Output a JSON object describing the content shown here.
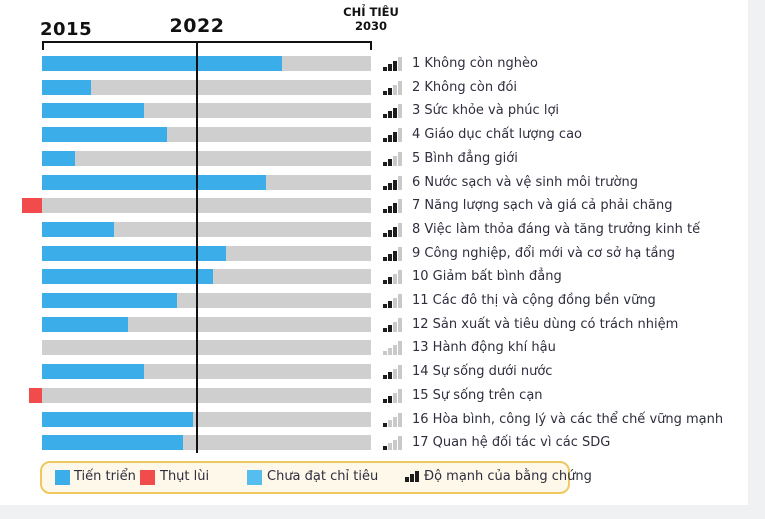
{
  "header": {
    "year_start": "2015",
    "year_current": "2022",
    "target_line1": "CHỈ TIÊU",
    "target_line2": "2030"
  },
  "legend": {
    "progress": "Tiến triển",
    "regress": "Thụt lùi",
    "not_met": "Chưa đạt chỉ tiêu",
    "evidence": "Độ mạnh của bằng chứng"
  },
  "colors": {
    "progress_blue": "#3badE9",
    "not_met_blue": "#55beef",
    "regress_red": "#f14b4b",
    "track_gray": "#cfcfcf",
    "evidence_dark": "#1c1c1c",
    "evidence_light": "#c9c9c9",
    "legend_border": "#eec95f",
    "legend_bg": "#fdf8e9",
    "timeline_black": "#111111"
  },
  "chart_data": {
    "type": "bar",
    "title": "",
    "orientation": "horizontal",
    "timeline": {
      "start_year": 2015,
      "current_year": 2022,
      "target_year": 2030,
      "current_position_fraction": 0.47
    },
    "value_note": "value = fraction of distance from 2015 baseline to 2030 target; negative = regression",
    "evidence_note": "evidence_strength = dark bars out of 4 in strength-of-evidence icon",
    "goals": [
      {
        "label": "1 Không còn nghèo",
        "value": 0.73,
        "status": "progress",
        "evidence_strength": 3
      },
      {
        "label": "2 Không còn đói",
        "value": 0.15,
        "status": "progress",
        "evidence_strength": 2
      },
      {
        "label": "3 Sức khỏe và phúc lợi",
        "value": 0.31,
        "status": "progress",
        "evidence_strength": 3
      },
      {
        "label": "4 Giáo dục chất lượng cao",
        "value": 0.38,
        "status": "progress",
        "evidence_strength": 3
      },
      {
        "label": "5 Bình đẳng giới",
        "value": 0.1,
        "status": "progress",
        "evidence_strength": 2
      },
      {
        "label": "6 Nước sạch và vệ sinh môi trường",
        "value": 0.68,
        "status": "progress",
        "evidence_strength": 3
      },
      {
        "label": "7 Năng lượng sạch và giá cả phải chăng",
        "value": -0.06,
        "status": "regress",
        "evidence_strength": 3
      },
      {
        "label": "8 Việc làm thỏa đáng và tăng trưởng kinh tế",
        "value": 0.22,
        "status": "progress",
        "evidence_strength": 3
      },
      {
        "label": "9 Công nghiệp, đổi mới và cơ sở hạ tầng",
        "value": 0.56,
        "status": "progress",
        "evidence_strength": 3
      },
      {
        "label": "10 Giảm bất bình đẳng",
        "value": 0.52,
        "status": "progress",
        "evidence_strength": 2
      },
      {
        "label": "11 Các đô thị và cộng đồng bền vững",
        "value": 0.41,
        "status": "progress",
        "evidence_strength": 2
      },
      {
        "label": "12 Sản xuất và tiêu dùng có trách nhiệm",
        "value": 0.26,
        "status": "progress",
        "evidence_strength": 2
      },
      {
        "label": "13 Hành động khí hậu",
        "value": 0.0,
        "status": "none",
        "evidence_strength": 0
      },
      {
        "label": "14 Sự sống dưới nước",
        "value": 0.31,
        "status": "progress",
        "evidence_strength": 2
      },
      {
        "label": "15 Sự sống trên cạn",
        "value": -0.04,
        "status": "regress",
        "evidence_strength": 2
      },
      {
        "label": "16 Hòa bình, công lý và các thể chế vững mạnh",
        "value": 0.46,
        "status": "progress",
        "evidence_strength": 1
      },
      {
        "label": "17 Quan hệ đối tác vì các SDG",
        "value": 0.43,
        "status": "progress",
        "evidence_strength": 1
      }
    ]
  }
}
